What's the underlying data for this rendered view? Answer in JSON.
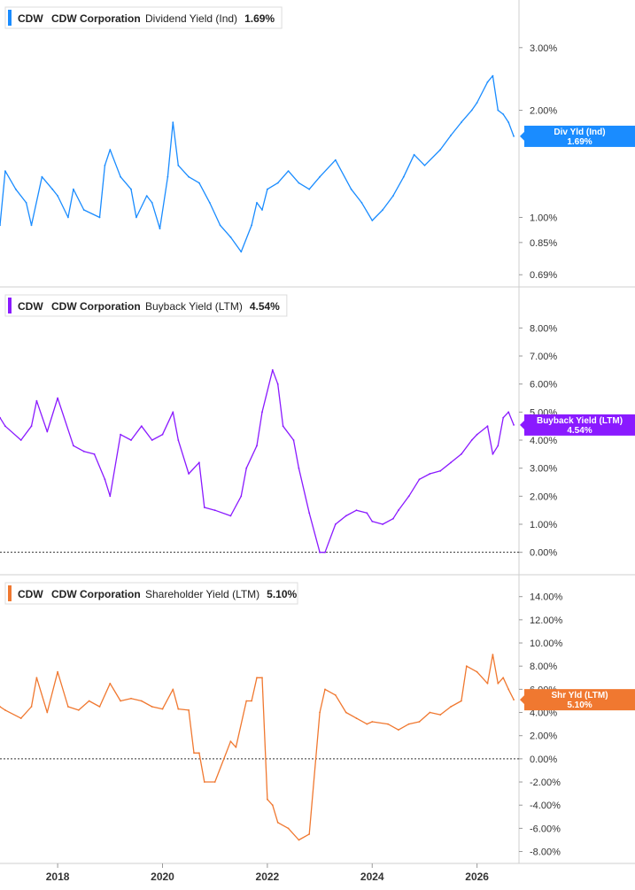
{
  "chart_data": [
    {
      "type": "line",
      "ticker": "CDW",
      "company": "CDW Corporation",
      "metric": "Dividend Yield (Ind)",
      "last_value": "1.69%",
      "tag_label": "Div Yld (Ind)",
      "color": "#1a8cff",
      "log_scale": true,
      "ylim": [
        0.66,
        3.9
      ],
      "yticks": [
        3.0,
        2.0,
        1.0,
        0.85,
        0.69
      ],
      "ytick_labels": [
        "3.00%",
        "2.00%",
        "1.00%",
        "0.85%",
        "0.69%"
      ],
      "x": [
        2016.9,
        2017.0,
        2017.2,
        2017.4,
        2017.5,
        2017.7,
        2017.9,
        2018.0,
        2018.2,
        2018.3,
        2018.5,
        2018.8,
        2018.9,
        2019.0,
        2019.2,
        2019.4,
        2019.5,
        2019.7,
        2019.8,
        2019.95,
        2020.1,
        2020.2,
        2020.3,
        2020.5,
        2020.7,
        2020.9,
        2021.1,
        2021.3,
        2021.5,
        2021.7,
        2021.8,
        2021.9,
        2022.0,
        2022.2,
        2022.4,
        2022.6,
        2022.8,
        2023.0,
        2023.3,
        2023.6,
        2023.8,
        2024.0,
        2024.2,
        2024.4,
        2024.6,
        2024.8,
        2025.0,
        2025.3,
        2025.5,
        2025.7,
        2025.9,
        2026.0,
        2026.2,
        2026.3,
        2026.4,
        2026.5,
        2026.6,
        2026.7
      ],
      "values": [
        0.95,
        1.35,
        1.2,
        1.1,
        0.95,
        1.3,
        1.2,
        1.15,
        1.0,
        1.2,
        1.05,
        1.0,
        1.4,
        1.55,
        1.3,
        1.2,
        1.0,
        1.15,
        1.1,
        0.93,
        1.3,
        1.85,
        1.4,
        1.3,
        1.25,
        1.1,
        0.95,
        0.88,
        0.8,
        0.95,
        1.1,
        1.05,
        1.2,
        1.25,
        1.35,
        1.25,
        1.2,
        1.3,
        1.45,
        1.2,
        1.1,
        0.98,
        1.05,
        1.15,
        1.3,
        1.5,
        1.4,
        1.55,
        1.7,
        1.85,
        2.0,
        2.1,
        2.4,
        2.5,
        2.0,
        1.95,
        1.85,
        1.69
      ]
    },
    {
      "type": "line",
      "ticker": "CDW",
      "company": "CDW Corporation",
      "metric": "Buyback Yield (LTM)",
      "last_value": "4.54%",
      "tag_label": "Buyback Yield (LTM)",
      "color": "#8a1aff",
      "ylim": [
        -0.2,
        8.8
      ],
      "yticks": [
        8,
        7,
        6,
        5,
        4,
        3,
        2,
        1,
        0
      ],
      "ytick_labels": [
        "8.00%",
        "7.00%",
        "6.00%",
        "5.00%",
        "4.00%",
        "3.00%",
        "2.00%",
        "1.00%",
        "0.00%"
      ],
      "x": [
        2016.9,
        2017.0,
        2017.3,
        2017.5,
        2017.6,
        2017.8,
        2018.0,
        2018.3,
        2018.5,
        2018.7,
        2018.9,
        2019.0,
        2019.2,
        2019.4,
        2019.6,
        2019.8,
        2020.0,
        2020.2,
        2020.3,
        2020.5,
        2020.7,
        2020.8,
        2021.0,
        2021.3,
        2021.5,
        2021.6,
        2021.8,
        2021.9,
        2022.1,
        2022.2,
        2022.3,
        2022.5,
        2022.6,
        2022.8,
        2023.0,
        2023.1,
        2023.3,
        2023.5,
        2023.7,
        2023.9,
        2024.0,
        2024.2,
        2024.4,
        2024.5,
        2024.7,
        2024.9,
        2025.1,
        2025.3,
        2025.5,
        2025.7,
        2025.9,
        2026.0,
        2026.2,
        2026.3,
        2026.4,
        2026.5,
        2026.6,
        2026.7
      ],
      "values": [
        4.8,
        4.5,
        4.0,
        4.5,
        5.4,
        4.3,
        5.5,
        3.8,
        3.6,
        3.5,
        2.6,
        2.0,
        4.2,
        4.0,
        4.5,
        4.0,
        4.2,
        5.0,
        4.0,
        2.8,
        3.2,
        1.6,
        1.5,
        1.3,
        2.0,
        3.0,
        3.8,
        5.0,
        6.5,
        6.0,
        4.5,
        4.0,
        3.0,
        1.4,
        0.0,
        0.0,
        1.0,
        1.3,
        1.5,
        1.4,
        1.1,
        1.0,
        1.2,
        1.5,
        2.0,
        2.6,
        2.8,
        2.9,
        3.2,
        3.5,
        4.0,
        4.2,
        4.5,
        3.5,
        3.8,
        4.8,
        5.0,
        4.54
      ]
    },
    {
      "type": "line",
      "ticker": "CDW",
      "company": "CDW Corporation",
      "metric": "Shareholder Yield (LTM)",
      "last_value": "5.10%",
      "tag_label": "Shr Yld (LTM)",
      "color": "#f07830",
      "ylim": [
        -8.8,
        15.2
      ],
      "yticks": [
        14,
        12,
        10,
        8,
        6,
        4,
        2,
        0,
        -2,
        -4,
        -6,
        -8
      ],
      "ytick_labels": [
        "14.00%",
        "12.00%",
        "10.00%",
        "8.00%",
        "6.00%",
        "4.00%",
        "2.00%",
        "0.00%",
        "-2.00%",
        "-4.00%",
        "-6.00%",
        "-8.00%"
      ],
      "x": [
        2016.9,
        2017.0,
        2017.3,
        2017.5,
        2017.6,
        2017.8,
        2018.0,
        2018.2,
        2018.4,
        2018.6,
        2018.8,
        2019.0,
        2019.2,
        2019.4,
        2019.6,
        2019.8,
        2020.0,
        2020.2,
        2020.3,
        2020.5,
        2020.6,
        2020.7,
        2020.8,
        2021.0,
        2021.3,
        2021.4,
        2021.6,
        2021.7,
        2021.8,
        2021.9,
        2022.0,
        2022.1,
        2022.2,
        2022.4,
        2022.6,
        2022.8,
        2023.0,
        2023.1,
        2023.3,
        2023.5,
        2023.7,
        2023.9,
        2024.0,
        2024.3,
        2024.5,
        2024.7,
        2024.9,
        2025.1,
        2025.3,
        2025.5,
        2025.7,
        2025.8,
        2026.0,
        2026.2,
        2026.3,
        2026.4,
        2026.5,
        2026.6,
        2026.7
      ],
      "values": [
        4.5,
        4.2,
        3.5,
        4.5,
        7.0,
        4.0,
        7.5,
        4.5,
        4.2,
        5.0,
        4.5,
        6.5,
        5.0,
        5.2,
        5.0,
        4.5,
        4.3,
        6.0,
        4.3,
        4.2,
        0.5,
        0.5,
        -2.0,
        -2.0,
        1.5,
        1.0,
        5.0,
        5.0,
        7.0,
        7.0,
        -3.5,
        -4.0,
        -5.5,
        -6.0,
        -7.0,
        -6.5,
        4.0,
        6.0,
        5.5,
        4.0,
        3.5,
        3.0,
        3.2,
        3.0,
        2.5,
        3.0,
        3.2,
        4.0,
        3.8,
        4.5,
        5.0,
        8.0,
        7.5,
        6.5,
        9.0,
        6.5,
        7.0,
        6.0,
        5.1
      ]
    }
  ],
  "x_axis": {
    "range": [
      2016.9,
      2026.8
    ],
    "ticks": [
      2018,
      2020,
      2022,
      2024,
      2026
    ],
    "tick_labels": [
      "2018",
      "2020",
      "2022",
      "2024",
      "2026"
    ]
  }
}
